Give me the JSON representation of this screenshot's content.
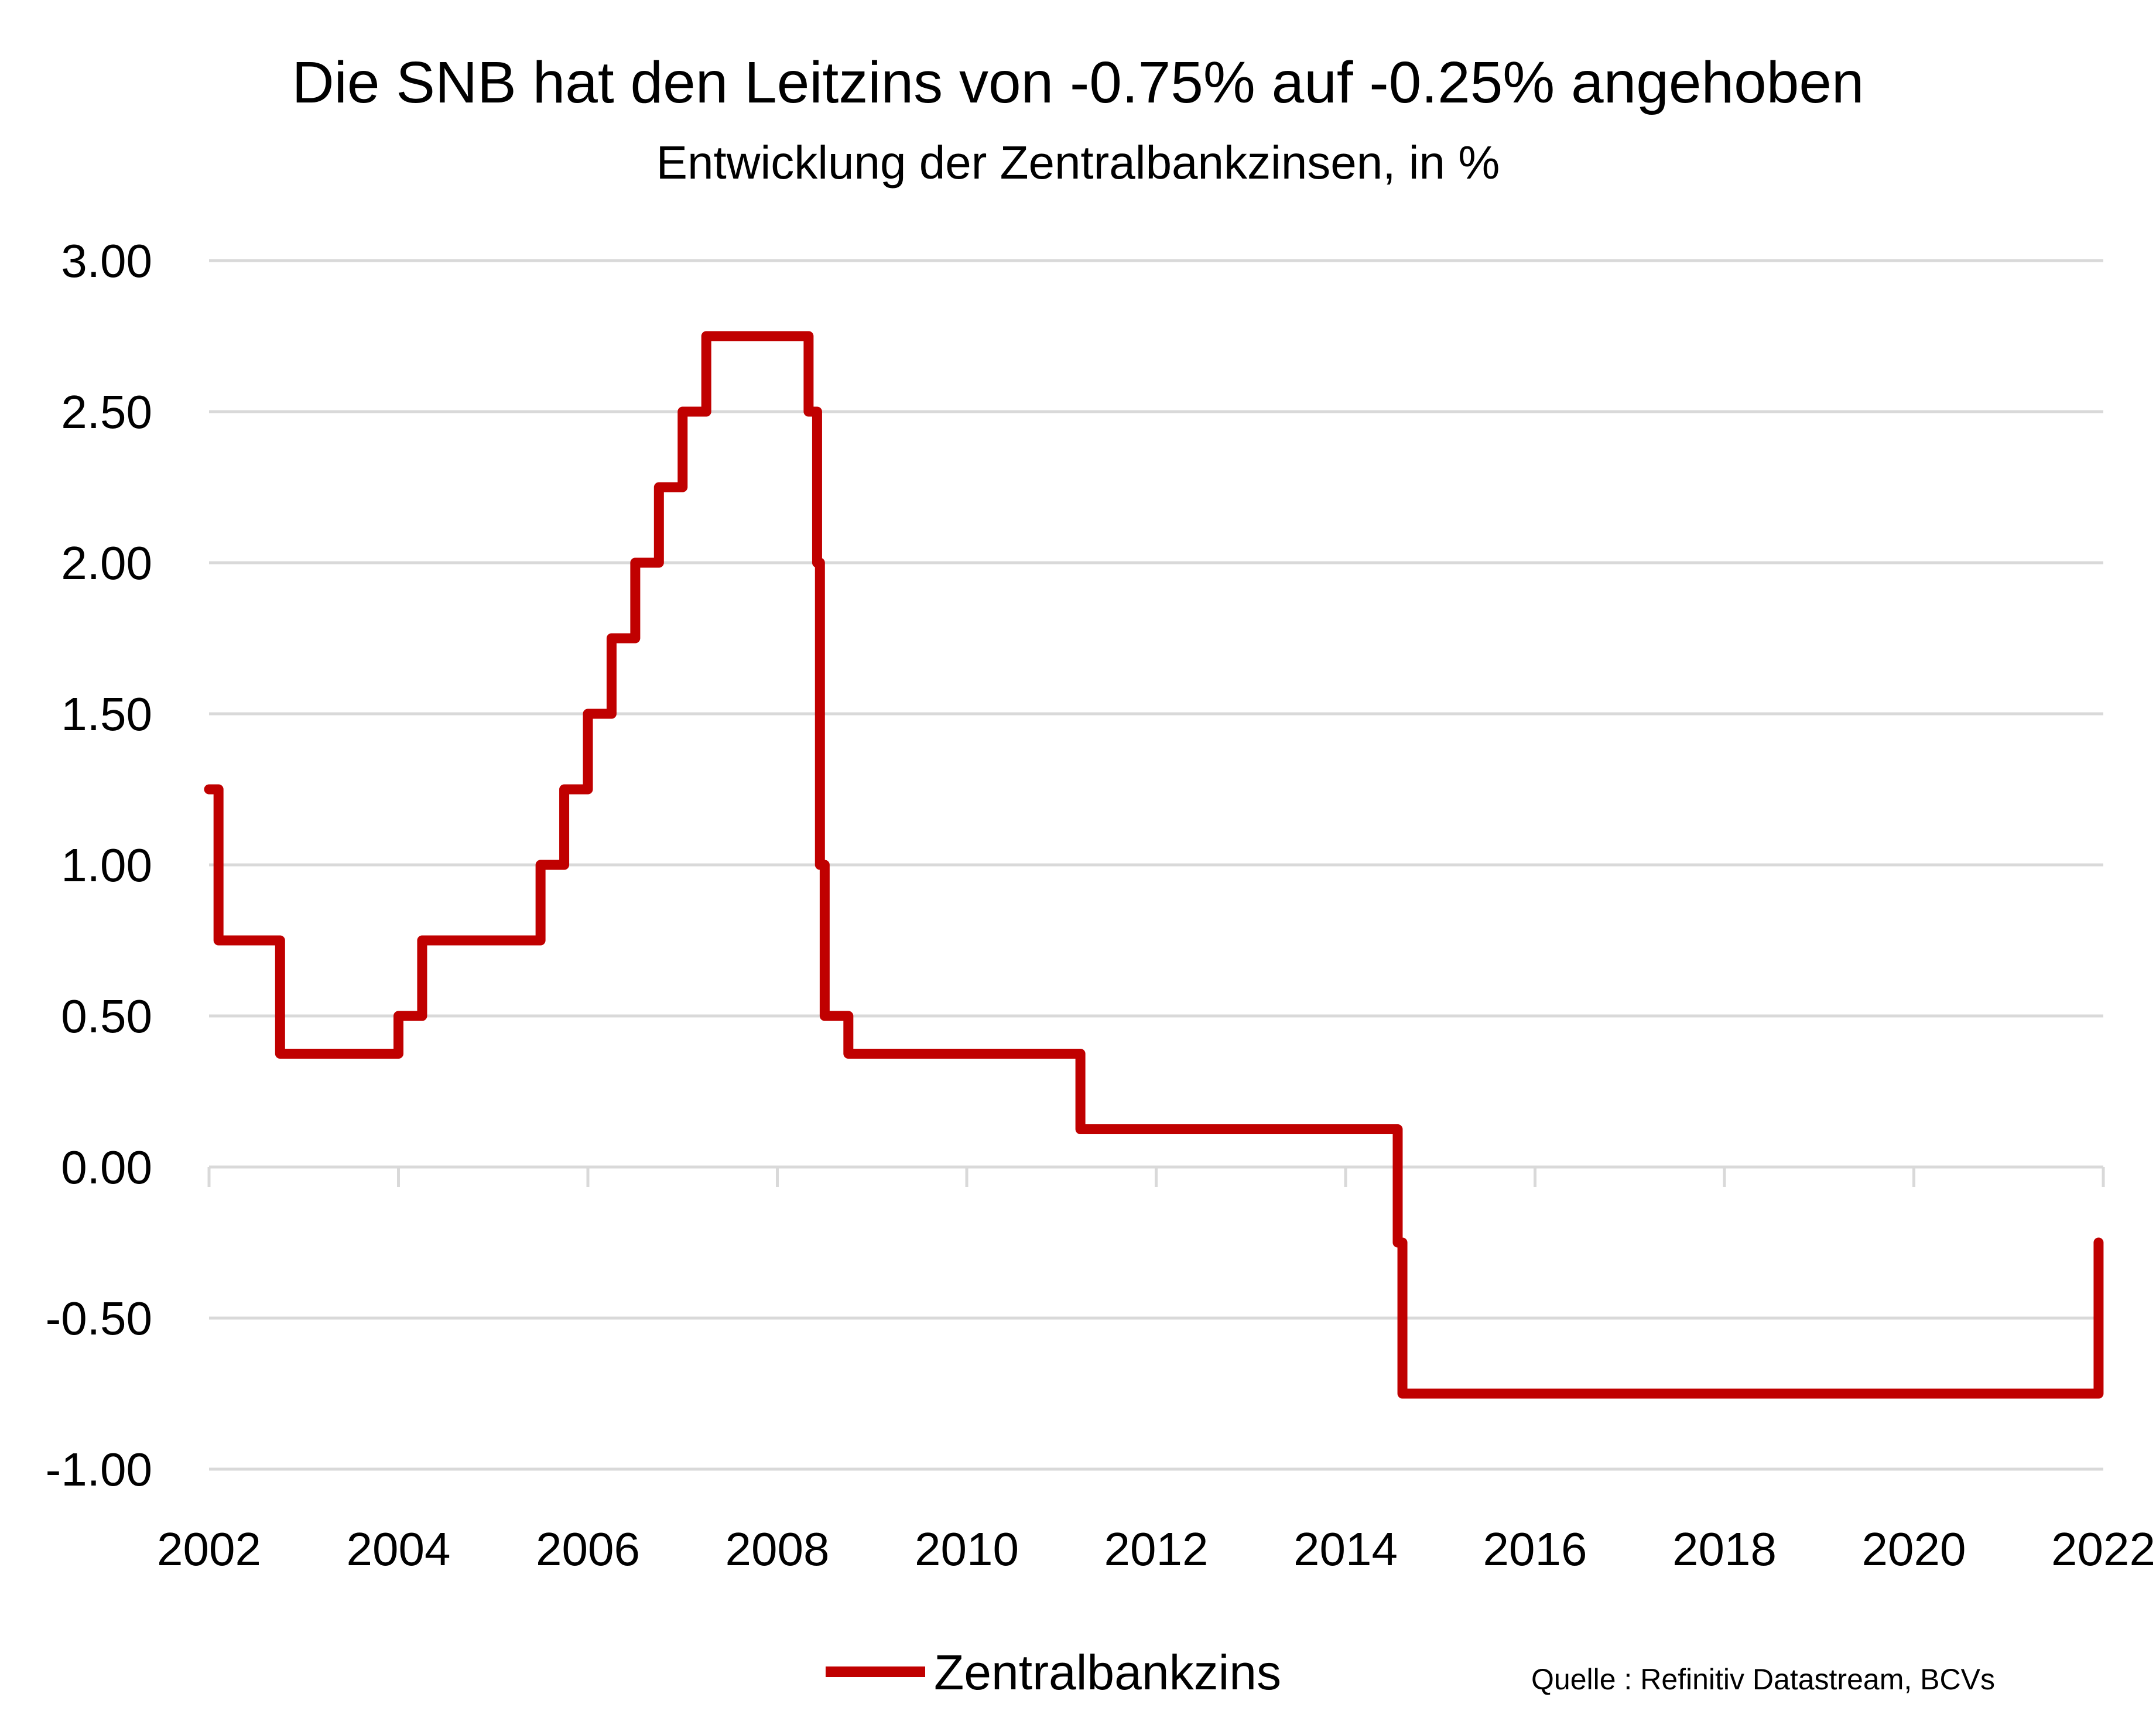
{
  "chart_data": {
    "type": "line",
    "title": "Die SNB hat den Leitzins von -0.75% auf -0.25% angehoben",
    "subtitle": "Entwicklung der Zentralbankzinsen, in %",
    "xlabel": "",
    "ylabel": "",
    "xlim": [
      2002,
      2022
    ],
    "ylim": [
      -1.0,
      3.0
    ],
    "x_ticks": [
      "2002",
      "2004",
      "2006",
      "2008",
      "2010",
      "2012",
      "2014",
      "2016",
      "2018",
      "2020",
      "2022"
    ],
    "y_ticks": [
      "3.00",
      "2.50",
      "2.00",
      "1.50",
      "1.00",
      "0.50",
      "0.00",
      "-0.50",
      "-1.00"
    ],
    "grid": true,
    "legend_position": "bottom",
    "series": [
      {
        "name": "Zentralbankzins",
        "color": "#c00000",
        "step": true,
        "x": [
          2002.0,
          2002.1,
          2002.75,
          2004.0,
          2004.25,
          2005.5,
          2005.75,
          2006.0,
          2006.25,
          2006.5,
          2006.75,
          2007.0,
          2007.25,
          2008.33,
          2008.42,
          2008.45,
          2008.5,
          2008.75,
          2011.2,
          2014.55,
          2014.6,
          2021.95
        ],
        "values": [
          1.25,
          0.75,
          0.375,
          0.5,
          0.75,
          1.0,
          1.25,
          1.5,
          1.75,
          2.0,
          2.25,
          2.5,
          2.75,
          2.5,
          2.0,
          1.0,
          0.5,
          0.375,
          0.125,
          -0.25,
          -0.75,
          -0.25
        ]
      }
    ]
  },
  "source": "Quelle : Refinitiv Datastream, BCVs"
}
